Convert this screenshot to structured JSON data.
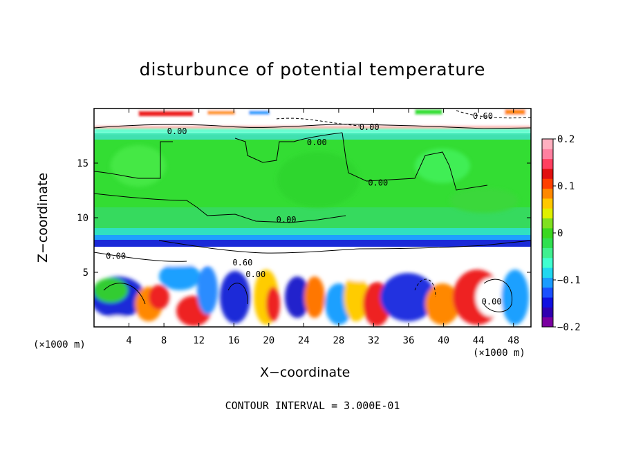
{
  "chart_data": {
    "type": "heatmap",
    "title": "disturbunce of potential temperature",
    "xlabel": "X−coordinate",
    "ylabel": "Z−coordinate",
    "x_unit_label": "(×1000 m)",
    "z_unit_label": "(×1000 m)",
    "xlim": [
      0,
      50
    ],
    "ylim": [
      0,
      20
    ],
    "x_ticks": [
      4,
      8,
      12,
      16,
      20,
      24,
      28,
      32,
      36,
      40,
      44,
      48
    ],
    "y_ticks": [
      5,
      10,
      15
    ],
    "colorbar": {
      "range": [
        -0.2,
        0.2
      ],
      "tick_labels": [
        "0.2",
        "0.1",
        "0",
        "−0.1",
        "−0.2"
      ],
      "tick_values": [
        0.2,
        0.1,
        0,
        -0.1,
        -0.2
      ]
    },
    "contour_labels": [
      {
        "text": "0.60",
        "x": 44.5,
        "z": 19.3
      },
      {
        "text": "0.00",
        "x": 9.5,
        "z": 17.9
      },
      {
        "text": "0.00",
        "x": 31.5,
        "z": 18.3
      },
      {
        "text": "0.00",
        "x": 25.5,
        "z": 16.9
      },
      {
        "text": "0.00",
        "x": 32.5,
        "z": 13.2
      },
      {
        "text": "0.00",
        "x": 22,
        "z": 9.8
      },
      {
        "text": "0.00",
        "x": 2.5,
        "z": 6.5
      },
      {
        "text": "0.60",
        "x": 17,
        "z": 5.9
      },
      {
        "text": "0.00",
        "x": 18.5,
        "z": 4.8
      },
      {
        "text": "0.00",
        "x": 45.5,
        "z": 2.3
      }
    ],
    "footer": "CONTOUR INTERVAL = 3.000E-01"
  }
}
